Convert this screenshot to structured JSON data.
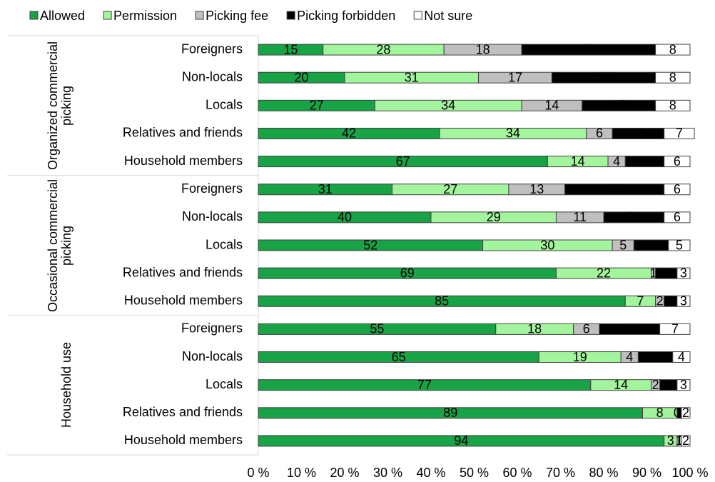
{
  "chart_data": {
    "type": "stacked-bar-horizontal",
    "groups": [
      "Organized commercial picking",
      "Occasional commercial picking",
      "Household use"
    ],
    "categories": [
      "Foreigners",
      "Non-locals",
      "Locals",
      "Relatives and friends",
      "Household members",
      "Foreigners",
      "Non-locals",
      "Locals",
      "Relatives and friends",
      "Household members",
      "Foreigners",
      "Non-locals",
      "Locals",
      "Relatives and friends",
      "Household members"
    ],
    "series": [
      {
        "name": "Allowed",
        "color": "#17a346",
        "values": [
          15,
          20,
          27,
          42,
          67,
          31,
          40,
          52,
          69,
          85,
          55,
          65,
          77,
          89,
          94
        ]
      },
      {
        "name": "Permission",
        "color": "#a3f59d",
        "values": [
          28,
          31,
          34,
          34,
          14,
          27,
          29,
          30,
          22,
          7,
          18,
          19,
          14,
          8,
          3
        ]
      },
      {
        "name": "Picking fee",
        "color": "#bfbfbf",
        "values": [
          18,
          17,
          14,
          6,
          4,
          13,
          11,
          5,
          1,
          2,
          6,
          4,
          2,
          0,
          1
        ]
      },
      {
        "name": "Picking forbidden",
        "color": "#000000",
        "values": [
          31,
          24,
          17,
          12,
          9,
          23,
          14,
          8,
          5,
          3,
          14,
          8,
          4,
          1,
          0
        ]
      },
      {
        "name": "Not sure",
        "color": "#ffffff",
        "values": [
          8,
          8,
          8,
          7,
          6,
          6,
          6,
          5,
          3,
          3,
          7,
          4,
          3,
          2,
          2
        ]
      }
    ],
    "xlim": [
      0,
      100
    ],
    "xticks": [
      {
        "value": 0,
        "label": "0 %"
      },
      {
        "value": 10,
        "label": "10 %"
      },
      {
        "value": 20,
        "label": "20 %"
      },
      {
        "value": 30,
        "label": "30 %"
      },
      {
        "value": 40,
        "label": "40 %"
      },
      {
        "value": 50,
        "label": "50 %"
      },
      {
        "value": 60,
        "label": "60 %"
      },
      {
        "value": 70,
        "label": "70 %"
      },
      {
        "value": 80,
        "label": "80 %"
      },
      {
        "value": 90,
        "label": "90 %"
      },
      {
        "value": 100,
        "label": "100 %"
      }
    ],
    "legend": "top"
  }
}
